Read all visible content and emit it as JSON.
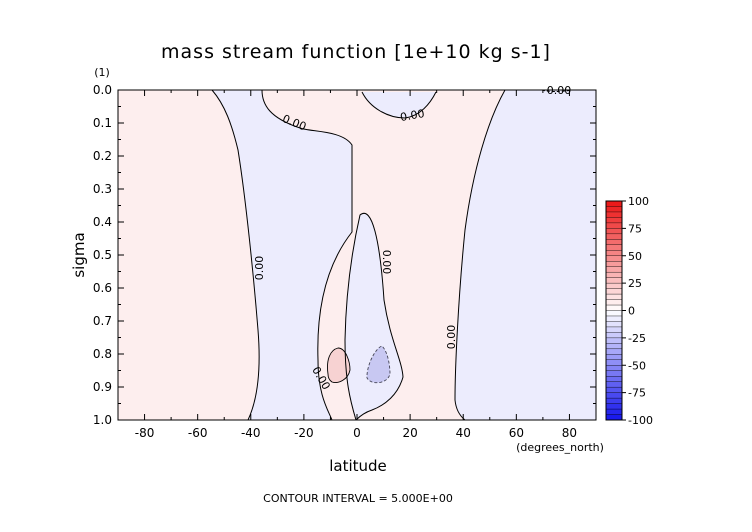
{
  "chart_data": {
    "type": "contour",
    "title": "mass stream function [1e+10 kg s-1]",
    "xlabel": "latitude",
    "xunits": "(degrees_north)",
    "ylabel": "sigma",
    "yunits": "(1)",
    "xlim": [
      -90,
      90
    ],
    "ylim": [
      1.0,
      0.0
    ],
    "xticks": [
      "-80",
      "-60",
      "-40",
      "-20",
      "0",
      "20",
      "40",
      "60",
      "80"
    ],
    "yticks": [
      "0.0",
      "0.1",
      "0.2",
      "0.3",
      "0.4",
      "0.5",
      "0.6",
      "0.7",
      "0.8",
      "0.9",
      "1.0"
    ],
    "contour_labels": [
      "0.00",
      "0.00",
      "0.00",
      "0.00",
      "0.00",
      "0.00",
      "0.00"
    ],
    "contour_interval_text": "CONTOUR INTERVAL = 5.000E+00",
    "colorbar": {
      "ticks": [
        "100",
        "75",
        "50",
        "25",
        "0",
        "-25",
        "-50",
        "-75",
        "-100"
      ],
      "min": -100,
      "max": 100,
      "positive_color": "#e00000",
      "negative_color": "#0000e0"
    },
    "regions": [
      {
        "name": "southern-positive-cell",
        "sign": "positive",
        "lat_range": [
          -90,
          -38
        ]
      },
      {
        "name": "southern-negative-cell",
        "sign": "negative",
        "lat_range": [
          -38,
          0
        ]
      },
      {
        "name": "equatorial-negative-cell",
        "sign": "negative",
        "lat_range": [
          0,
          15
        ]
      },
      {
        "name": "northern-positive-cell",
        "sign": "positive",
        "lat_range": [
          15,
          60
        ]
      },
      {
        "name": "northern-negative-cell",
        "sign": "negative",
        "lat_range": [
          60,
          90
        ]
      }
    ]
  },
  "colors": {
    "positive_fill": "#fdeeee",
    "negative_fill": "#ececfd",
    "positive_core": "#f7d2d2",
    "negative_core": "#c8c8f2"
  }
}
